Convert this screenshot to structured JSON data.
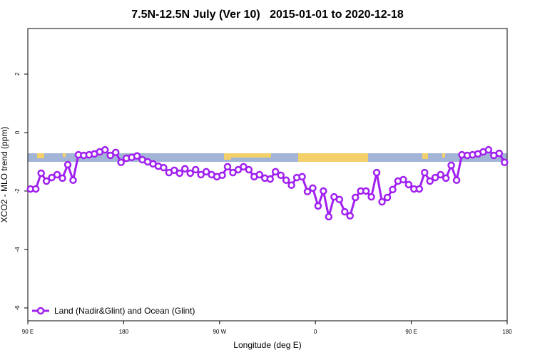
{
  "chart_data": {
    "type": "line",
    "title": "7.5N-12.5N July (Ver 10)   2015-01-01 to 2020-12-18",
    "x_label": "Longitude (deg E)",
    "y_label": "XCO2 - MLO trend (ppm)",
    "xlim": [
      90,
      540
    ],
    "xticks": [
      {
        "value": 90,
        "label": "90 E"
      },
      {
        "value": 180,
        "label": "180"
      },
      {
        "value": 270,
        "label": "90 W"
      },
      {
        "value": 360,
        "label": "0"
      },
      {
        "value": 450,
        "label": "90 E"
      },
      {
        "value": 540,
        "label": "180"
      }
    ],
    "ylim": [
      -6.44,
      3.56
    ],
    "yticks": [
      2,
      0,
      -2,
      -4,
      -6
    ],
    "legend": "bottom-left",
    "x": [
      92.5,
      97.5,
      102.5,
      107.5,
      112.5,
      117.5,
      122.5,
      127.5,
      132.5,
      137.5,
      142.5,
      147.5,
      152.5,
      157.5,
      162.5,
      167.5,
      172.5,
      177.5,
      182.5,
      187.5,
      192.5,
      197.5,
      202.5,
      207.5,
      212.5,
      217.5,
      222.5,
      227.5,
      232.5,
      237.5,
      242.5,
      247.5,
      252.5,
      257.5,
      262.5,
      267.5,
      272.5,
      277.5,
      282.5,
      287.5,
      292.5,
      297.5,
      302.5,
      307.5,
      312.5,
      317.5,
      322.5,
      327.5,
      332.5,
      337.5,
      342.5,
      347.5,
      352.5,
      357.5,
      362.5,
      367.5,
      372.5,
      377.5,
      382.5,
      387.5,
      392.5,
      397.5,
      402.5,
      407.5,
      412.5,
      417.5,
      422.5,
      427.5,
      432.5,
      437.5,
      442.5,
      447.5,
      452.5,
      457.5,
      462.5,
      467.5,
      472.5,
      477.5,
      482.5,
      487.5,
      492.5,
      497.5,
      502.5,
      507.5,
      512.5,
      517.5,
      522.5,
      527.5,
      532.5,
      537.5
    ],
    "series": [
      {
        "name": "Land (Nadir&Glint) and Ocean (Glint)",
        "color": "#a020f0",
        "values": [
          -1.93,
          -1.93,
          -1.39,
          -1.66,
          -1.54,
          -1.44,
          -1.56,
          -1.1,
          -1.63,
          -0.76,
          -0.78,
          -0.76,
          -0.73,
          -0.66,
          -0.59,
          -0.78,
          -0.68,
          -1.02,
          -0.88,
          -0.85,
          -0.8,
          -0.93,
          -1.0,
          -1.07,
          -1.15,
          -1.2,
          -1.37,
          -1.29,
          -1.39,
          -1.24,
          -1.39,
          -1.27,
          -1.44,
          -1.34,
          -1.44,
          -1.51,
          -1.46,
          -1.17,
          -1.37,
          -1.27,
          -1.17,
          -1.27,
          -1.51,
          -1.44,
          -1.56,
          -1.59,
          -1.34,
          -1.46,
          -1.63,
          -1.8,
          -1.54,
          -1.51,
          -2.02,
          -1.9,
          -2.51,
          -2.0,
          -2.88,
          -2.2,
          -2.29,
          -2.71,
          -2.85,
          -2.22,
          -2.0,
          -2.0,
          -2.2,
          -1.37,
          -2.37,
          -2.22,
          -1.95,
          -1.66,
          -1.61,
          -1.78,
          -1.93,
          -1.93,
          -1.37,
          -1.66,
          -1.54,
          -1.44,
          -1.56,
          -1.12,
          -1.63,
          -0.76,
          -0.78,
          -0.76,
          -0.73,
          -0.66,
          -0.59,
          -0.78,
          -0.71,
          -1.02
        ]
      }
    ]
  }
}
